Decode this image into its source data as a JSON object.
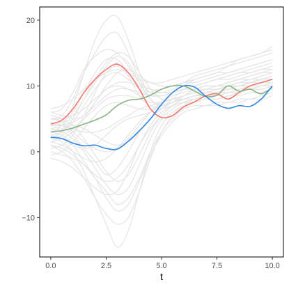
{
  "chart_data": {
    "type": "line",
    "title": "",
    "xlabel": "t",
    "ylabel": "",
    "xlim": [
      -0.5,
      10.5
    ],
    "ylim": [
      -16,
      22
    ],
    "x_ticks": [
      0,
      2.5,
      5,
      7.5,
      10
    ],
    "x_tick_labels": [
      "0.0",
      "2.5",
      "5.0",
      "7.5",
      "10.0"
    ],
    "y_ticks": [
      -10,
      0,
      10,
      20
    ],
    "y_tick_labels": [
      "−10",
      "0",
      "10",
      "20"
    ],
    "grid": false,
    "legend": "none",
    "background_colors": [
      "#e6e6e6"
    ],
    "x": [
      0,
      0.5,
      1,
      1.5,
      2,
      2.5,
      3,
      3.5,
      4,
      4.5,
      5,
      5.5,
      6,
      6.5,
      7,
      7.5,
      8,
      8.5,
      9,
      9.5,
      10
    ],
    "series": [
      {
        "color": "#f8766d",
        "highlight": true,
        "values": [
          4.2,
          4.8,
          6.5,
          9.0,
          11.0,
          12.5,
          13.3,
          12.0,
          9.5,
          6.5,
          5.2,
          5.5,
          6.8,
          7.6,
          8.5,
          8.8,
          8.0,
          9.0,
          10.0,
          10.5,
          11.0
        ]
      },
      {
        "color": "#86b57f",
        "highlight": true,
        "values": [
          3.0,
          3.2,
          3.6,
          4.2,
          4.8,
          5.6,
          7.0,
          7.8,
          8.0,
          8.6,
          9.5,
          10.0,
          10.0,
          9.2,
          8.4,
          8.6,
          10.0,
          9.2,
          9.5,
          8.8,
          9.8
        ]
      },
      {
        "color": "#2f86e8",
        "highlight": true,
        "values": [
          2.2,
          2.0,
          1.3,
          0.9,
          1.0,
          0.5,
          0.4,
          1.6,
          3.2,
          5.0,
          7.2,
          9.0,
          10.0,
          9.8,
          8.4,
          7.2,
          6.6,
          7.0,
          6.9,
          8.0,
          10.0
        ]
      },
      {
        "color": "#e6e6e6",
        "values": [
          3.0,
          4.0,
          7.0,
          12.0,
          17.0,
          20.0,
          20.5,
          17.0,
          12.0,
          8.0,
          7.0,
          8.0,
          9.5,
          10.0,
          10.5,
          11.0,
          11.5,
          12.0,
          12.5,
          13.0,
          13.5
        ]
      },
      {
        "color": "#e6e6e6",
        "values": [
          2.0,
          1.5,
          0.0,
          -3.0,
          -7.0,
          -11.0,
          -14.5,
          -12.0,
          -6.0,
          0.0,
          4.0,
          6.0,
          7.0,
          7.5,
          8.0,
          8.0,
          8.5,
          9.0,
          9.5,
          10.0,
          10.5
        ]
      },
      {
        "color": "#e6e6e6",
        "values": [
          5.0,
          5.5,
          8.0,
          12.0,
          15.0,
          17.5,
          18.0,
          15.0,
          11.0,
          9.0,
          8.5,
          9.0,
          10.0,
          11.0,
          11.5,
          12.0,
          13.0,
          13.5,
          14.0,
          14.5,
          15.0
        ]
      },
      {
        "color": "#e6e6e6",
        "values": [
          1.0,
          0.0,
          -1.5,
          -4.0,
          -7.0,
          -9.5,
          -11.0,
          -10.0,
          -6.0,
          -1.0,
          3.0,
          5.0,
          6.5,
          7.0,
          7.0,
          7.5,
          7.5,
          8.0,
          8.0,
          8.5,
          9.0
        ]
      },
      {
        "color": "#e6e6e6",
        "values": [
          6.0,
          6.5,
          9.0,
          12.5,
          14.5,
          15.5,
          15.0,
          13.0,
          10.5,
          9.5,
          9.5,
          10.0,
          10.5,
          11.5,
          12.0,
          12.5,
          13.0,
          14.0,
          14.5,
          15.0,
          16.0
        ]
      },
      {
        "color": "#e6e6e6",
        "values": [
          0.0,
          -0.5,
          -1.0,
          -2.0,
          -4.0,
          -6.0,
          -8.0,
          -7.0,
          -4.0,
          0.0,
          3.0,
          5.5,
          7.0,
          8.0,
          8.5,
          9.0,
          9.5,
          10.0,
          10.0,
          10.5,
          11.0
        ]
      },
      {
        "color": "#e6e6e6",
        "values": [
          4.0,
          4.5,
          6.0,
          9.0,
          12.0,
          14.0,
          14.0,
          12.0,
          10.0,
          9.0,
          9.0,
          9.5,
          10.5,
          11.0,
          11.5,
          12.0,
          12.0,
          12.5,
          13.0,
          13.5,
          14.0
        ]
      },
      {
        "color": "#e6e6e6",
        "values": [
          3.5,
          3.0,
          2.0,
          0.0,
          -2.5,
          -5.0,
          -6.5,
          -5.5,
          -2.0,
          2.0,
          5.0,
          6.5,
          7.5,
          8.0,
          8.5,
          9.0,
          9.0,
          9.5,
          10.0,
          10.0,
          10.5
        ]
      },
      {
        "color": "#e6e6e6",
        "values": [
          2.5,
          3.0,
          4.5,
          7.0,
          9.5,
          11.5,
          12.0,
          11.0,
          9.5,
          8.5,
          8.5,
          9.0,
          9.5,
          10.0,
          10.5,
          11.0,
          11.5,
          12.0,
          12.0,
          12.5,
          13.0
        ]
      },
      {
        "color": "#e6e6e6",
        "values": [
          5.5,
          5.0,
          4.0,
          2.0,
          -0.5,
          -3.0,
          -4.5,
          -3.5,
          -0.5,
          3.0,
          5.5,
          7.0,
          8.0,
          8.5,
          9.0,
          9.5,
          10.0,
          10.0,
          10.5,
          11.0,
          11.0
        ]
      },
      {
        "color": "#e6e6e6",
        "values": [
          1.5,
          2.0,
          3.0,
          5.0,
          7.5,
          9.5,
          10.0,
          9.5,
          8.5,
          7.5,
          7.5,
          8.0,
          8.5,
          9.0,
          9.5,
          9.5,
          10.0,
          10.5,
          10.5,
          11.0,
          11.5
        ]
      },
      {
        "color": "#e6e6e6",
        "values": [
          4.5,
          4.0,
          2.5,
          0.5,
          -1.5,
          -3.5,
          -2.5,
          0.0,
          3.0,
          5.0,
          6.5,
          7.5,
          8.5,
          9.0,
          9.0,
          9.5,
          9.5,
          10.0,
          10.0,
          10.5,
          10.5
        ]
      },
      {
        "color": "#e6e6e6",
        "values": [
          0.5,
          1.0,
          2.5,
          5.5,
          9.0,
          12.0,
          13.0,
          11.5,
          8.5,
          7.0,
          7.0,
          7.5,
          8.5,
          9.5,
          10.0,
          10.0,
          10.5,
          11.0,
          11.5,
          12.0,
          12.0
        ]
      },
      {
        "color": "#e6e6e6",
        "values": [
          3.0,
          2.5,
          1.0,
          -1.5,
          -4.0,
          -7.0,
          -9.0,
          -8.0,
          -4.5,
          -0.5,
          2.5,
          4.5,
          6.0,
          6.5,
          7.0,
          7.0,
          7.5,
          7.5,
          8.0,
          8.0,
          8.5
        ]
      },
      {
        "color": "#e6e6e6",
        "values": [
          6.5,
          7.0,
          8.0,
          9.5,
          11.0,
          12.0,
          12.5,
          12.0,
          11.0,
          10.5,
          10.5,
          11.0,
          11.5,
          12.0,
          12.5,
          13.0,
          13.5,
          14.0,
          14.5,
          15.0,
          15.5
        ]
      },
      {
        "color": "#e6e6e6",
        "values": [
          -1.0,
          -1.5,
          -2.5,
          -4.0,
          -5.5,
          -6.5,
          -6.0,
          -3.0,
          1.0,
          4.0,
          6.0,
          7.0,
          7.5,
          8.0,
          8.5,
          8.5,
          9.0,
          9.0,
          9.5,
          9.5,
          10.0
        ]
      },
      {
        "color": "#e6e6e6",
        "values": [
          2.0,
          2.5,
          3.5,
          5.0,
          6.5,
          8.0,
          8.5,
          8.5,
          8.0,
          7.5,
          7.5,
          8.0,
          8.5,
          9.0,
          9.5,
          10.0,
          10.5,
          11.0,
          11.0,
          11.5,
          12.0
        ]
      },
      {
        "color": "#e6e6e6",
        "values": [
          5.0,
          4.5,
          3.0,
          1.5,
          0.5,
          0.0,
          0.5,
          2.0,
          4.0,
          6.0,
          7.5,
          8.5,
          9.0,
          9.5,
          9.5,
          10.0,
          10.0,
          10.5,
          10.5,
          11.0,
          11.0
        ]
      },
      {
        "color": "#e6e6e6",
        "values": [
          3.5,
          4.0,
          5.5,
          8.0,
          10.5,
          13.0,
          14.5,
          13.5,
          10.5,
          8.0,
          7.0,
          7.5,
          8.0,
          8.5,
          9.0,
          9.0,
          9.5,
          9.5,
          10.0,
          10.0,
          10.5
        ]
      },
      {
        "color": "#e6e6e6",
        "values": [
          1.0,
          0.5,
          -0.5,
          -2.0,
          -3.5,
          -4.5,
          -4.0,
          -2.0,
          1.0,
          3.5,
          5.5,
          7.0,
          8.0,
          8.5,
          9.0,
          9.0,
          9.5,
          10.0,
          10.5,
          10.5,
          11.0
        ]
      },
      {
        "color": "#e6e6e6",
        "values": [
          4.0,
          4.0,
          4.5,
          5.5,
          7.0,
          8.5,
          9.5,
          9.5,
          9.0,
          8.5,
          8.5,
          9.0,
          9.5,
          10.0,
          10.5,
          11.0,
          11.0,
          11.5,
          12.0,
          12.5,
          12.5
        ]
      },
      {
        "color": "#e6e6e6",
        "values": [
          2.5,
          2.0,
          1.0,
          0.5,
          1.0,
          2.5,
          4.0,
          5.0,
          5.5,
          6.0,
          6.5,
          7.0,
          7.5,
          7.5,
          8.0,
          8.0,
          8.5,
          8.5,
          9.0,
          9.0,
          9.5
        ]
      },
      {
        "color": "#e6e6e6",
        "values": [
          6.0,
          5.5,
          5.0,
          5.5,
          7.5,
          10.0,
          12.0,
          12.5,
          11.5,
          10.5,
          10.0,
          10.0,
          10.5,
          10.5,
          11.0,
          11.5,
          12.0,
          12.5,
          13.0,
          13.5,
          14.0
        ]
      },
      {
        "color": "#e6e6e6",
        "values": [
          -0.5,
          0.0,
          1.5,
          3.5,
          5.5,
          7.0,
          7.5,
          7.0,
          6.5,
          6.5,
          7.0,
          7.5,
          8.0,
          8.0,
          8.5,
          8.5,
          9.0,
          9.0,
          9.5,
          9.5,
          10.0
        ]
      },
      {
        "color": "#e6e6e6",
        "values": [
          3.0,
          3.5,
          4.0,
          3.5,
          2.5,
          1.5,
          1.0,
          1.5,
          3.0,
          5.0,
          6.5,
          7.5,
          8.0,
          8.5,
          9.0,
          9.5,
          10.0,
          10.5,
          11.0,
          11.0,
          11.5
        ]
      },
      {
        "color": "#e6e6e6",
        "values": [
          5.0,
          5.0,
          5.5,
          6.5,
          8.0,
          9.5,
          10.5,
          10.5,
          10.0,
          9.5,
          9.0,
          9.0,
          9.5,
          9.5,
          10.0,
          10.0,
          10.5,
          11.0,
          11.0,
          11.5,
          12.0
        ]
      },
      {
        "color": "#e6e6e6",
        "values": [
          1.5,
          1.0,
          0.0,
          -1.0,
          -1.5,
          -1.0,
          0.5,
          2.5,
          4.5,
          6.0,
          7.0,
          7.5,
          8.0,
          8.5,
          9.0,
          9.5,
          10.0,
          10.0,
          10.5,
          11.0,
          11.5
        ]
      },
      {
        "color": "#e6e6e6",
        "values": [
          2.0,
          3.0,
          5.0,
          8.0,
          11.0,
          13.5,
          15.0,
          14.5,
          12.0,
          9.5,
          8.0,
          8.0,
          8.5,
          9.0,
          9.5,
          10.0,
          10.5,
          11.0,
          11.5,
          12.0,
          12.5
        ]
      },
      {
        "color": "#e6e6e6",
        "values": [
          4.5,
          4.0,
          3.5,
          3.0,
          3.0,
          3.5,
          4.5,
          5.5,
          6.5,
          7.0,
          7.5,
          8.0,
          8.0,
          8.5,
          8.5,
          9.0,
          9.0,
          9.5,
          9.5,
          10.0,
          10.0
        ]
      }
    ]
  }
}
